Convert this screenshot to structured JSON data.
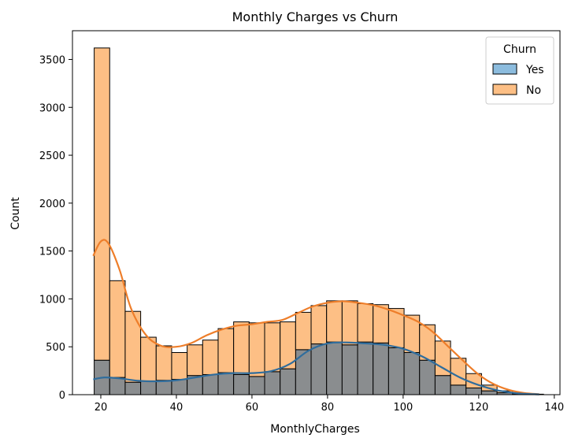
{
  "chart_data": {
    "type": "histogram",
    "title": "Monthly Charges vs Churn",
    "xlabel": "MonthlyCharges",
    "ylabel": "Count",
    "xlim": [
      12.5,
      141.5
    ],
    "ylim": [
      0,
      3800
    ],
    "xticks": [
      20,
      40,
      60,
      80,
      100,
      120,
      140
    ],
    "yticks": [
      0,
      500,
      1000,
      1500,
      2000,
      2500,
      3000,
      3500
    ],
    "grid": false,
    "stacked": true,
    "bin_start": 18.25,
    "bin_width": 4.1,
    "legend": {
      "title": "Churn",
      "position": "top-right",
      "entries": [
        {
          "name": "Yes",
          "fill": "#8cbcde",
          "line": "#2f6d9d"
        },
        {
          "name": "No",
          "fill": "#fdbf85",
          "line": "#ee7e2a"
        }
      ]
    },
    "series": [
      {
        "name": "Yes",
        "fill": "#8cbcde",
        "counts": [
          360,
          180,
          130,
          140,
          150,
          160,
          200,
          210,
          230,
          210,
          190,
          240,
          270,
          470,
          530,
          550,
          520,
          550,
          540,
          490,
          440,
          360,
          200,
          100,
          70,
          40,
          20,
          10,
          0
        ],
        "kde": [
          [
            18,
            160
          ],
          [
            21,
            180
          ],
          [
            25,
            170
          ],
          [
            30,
            145
          ],
          [
            35,
            140
          ],
          [
            40,
            150
          ],
          [
            45,
            180
          ],
          [
            50,
            210
          ],
          [
            55,
            225
          ],
          [
            60,
            225
          ],
          [
            65,
            245
          ],
          [
            70,
            320
          ],
          [
            75,
            460
          ],
          [
            80,
            535
          ],
          [
            85,
            545
          ],
          [
            90,
            535
          ],
          [
            95,
            520
          ],
          [
            100,
            480
          ],
          [
            105,
            400
          ],
          [
            110,
            290
          ],
          [
            115,
            180
          ],
          [
            120,
            100
          ],
          [
            125,
            45
          ],
          [
            130,
            15
          ],
          [
            136,
            3
          ]
        ]
      },
      {
        "name": "No",
        "fill": "#fdbf85",
        "counts": [
          3260,
          1010,
          740,
          460,
          360,
          280,
          320,
          360,
          460,
          550,
          560,
          510,
          490,
          390,
          400,
          430,
          460,
          400,
          400,
          410,
          390,
          370,
          360,
          280,
          150,
          60,
          20,
          5,
          5
        ],
        "kde": [
          [
            18,
            1450
          ],
          [
            20,
            1600
          ],
          [
            22,
            1580
          ],
          [
            25,
            1300
          ],
          [
            28,
            900
          ],
          [
            32,
            620
          ],
          [
            36,
            510
          ],
          [
            40,
            500
          ],
          [
            44,
            540
          ],
          [
            48,
            620
          ],
          [
            52,
            680
          ],
          [
            56,
            720
          ],
          [
            60,
            735
          ],
          [
            64,
            760
          ],
          [
            68,
            780
          ],
          [
            72,
            850
          ],
          [
            76,
            920
          ],
          [
            80,
            960
          ],
          [
            84,
            975
          ],
          [
            88,
            960
          ],
          [
            92,
            935
          ],
          [
            96,
            890
          ],
          [
            100,
            830
          ],
          [
            104,
            760
          ],
          [
            108,
            650
          ],
          [
            112,
            500
          ],
          [
            116,
            350
          ],
          [
            120,
            210
          ],
          [
            124,
            110
          ],
          [
            128,
            50
          ],
          [
            132,
            18
          ],
          [
            136,
            5
          ]
        ]
      }
    ]
  }
}
